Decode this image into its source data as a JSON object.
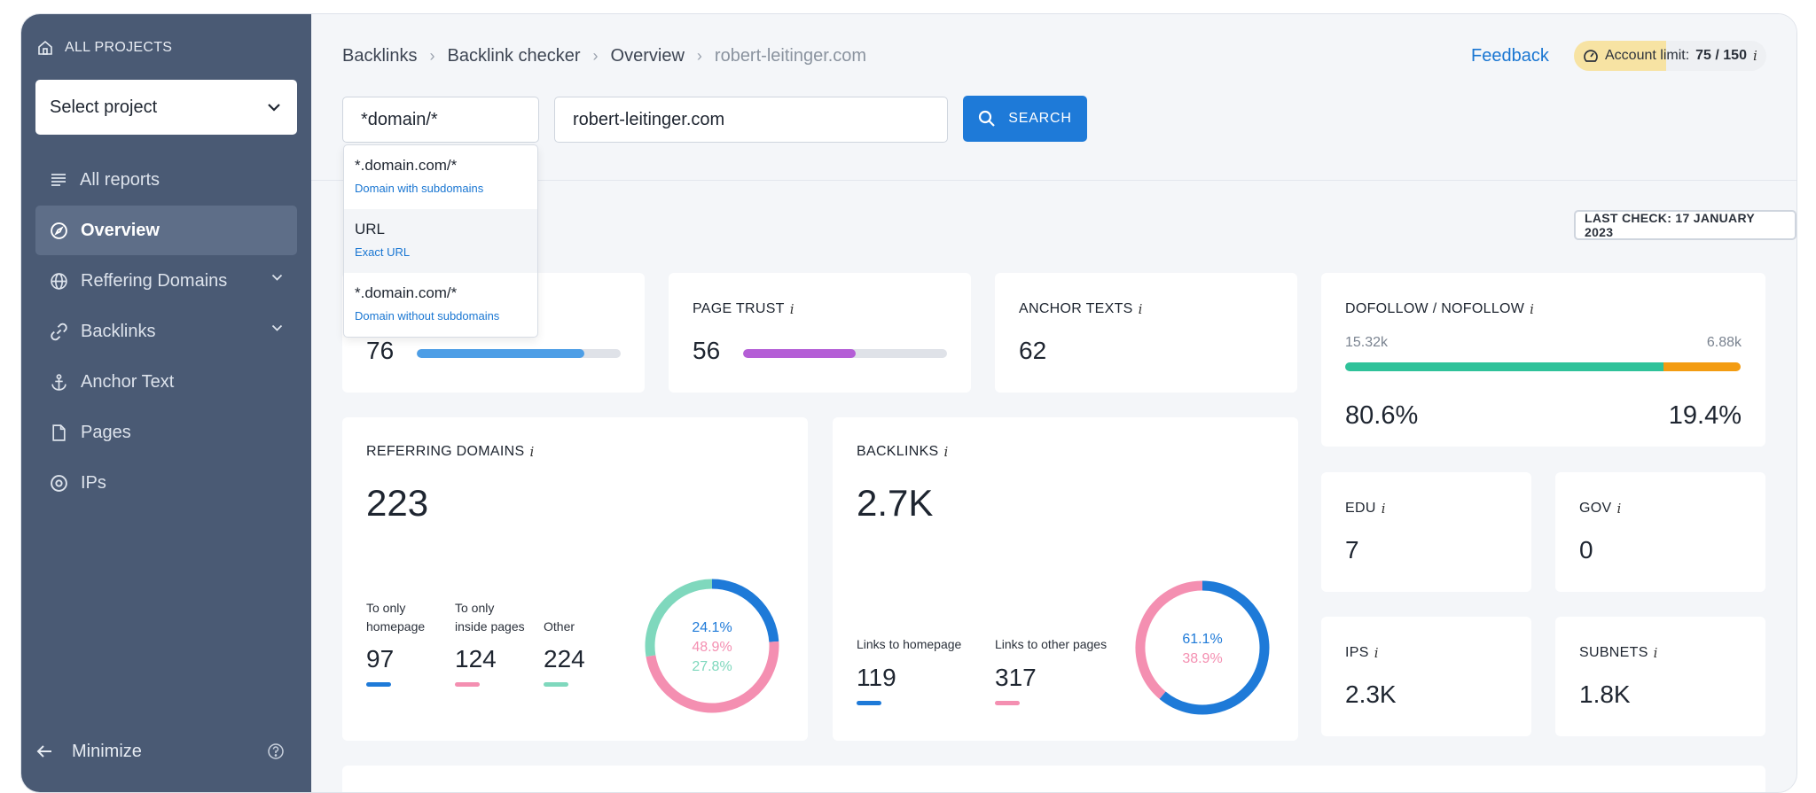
{
  "sidebar": {
    "all_projects": "ALL PROJECTS",
    "select_project": "Select project",
    "items": [
      {
        "label": "All reports",
        "icon": "list-icon"
      },
      {
        "label": "Overview",
        "icon": "compass-icon",
        "active": true
      },
      {
        "label": "Reffering Domains",
        "icon": "globe-icon",
        "expandable": true
      },
      {
        "label": "Backlinks",
        "icon": "link-icon",
        "expandable": true
      },
      {
        "label": "Anchor Text",
        "icon": "anchor-icon"
      },
      {
        "label": "Pages",
        "icon": "page-icon"
      },
      {
        "label": "IPs",
        "icon": "target-icon"
      }
    ],
    "minimize": "Minimize"
  },
  "breadcrumb": [
    "Backlinks",
    "Backlink checker",
    "Overview",
    "robert-leitinger.com"
  ],
  "header": {
    "feedback": "Feedback",
    "account_limit_label": "Account limit:",
    "account_limit_value": "75 / 150",
    "account_limit_fraction": 0.5,
    "info": "i"
  },
  "search": {
    "type_value": "*domain/*",
    "domain_value": "robert-leitinger.com",
    "button": "SEARCH"
  },
  "dropdown": [
    {
      "title": "*.domain.com/*",
      "subtitle": "Domain with subdomains"
    },
    {
      "title": "URL",
      "subtitle": "Exact URL"
    },
    {
      "title": "*.domain.com/*",
      "subtitle": "Domain without subdomains"
    }
  ],
  "last_check": "LAST CHECK: 17 JANUARY 2023",
  "cards": {
    "domain_trust": {
      "value": "76",
      "fraction": 0.82,
      "color": "#4d9ee6"
    },
    "page_trust": {
      "title": "PAGE TRUST",
      "value": "56",
      "fraction": 0.55,
      "color": "#b45ed6"
    },
    "anchor_texts": {
      "title": "ANCHOR TEXTS",
      "value": "62"
    },
    "dofollow": {
      "title": "DOFOLLOW / NOFOLLOW",
      "left_count": "15.32k",
      "right_count": "6.88k",
      "left_pct": "80.6%",
      "right_pct": "19.4%",
      "fraction": 0.806,
      "left_color": "#2fc29a",
      "right_color": "#f39c12"
    },
    "referring_domains": {
      "title": "REFERRING DOMAINS",
      "value": "223",
      "stats": [
        {
          "label1": "To only",
          "label2": "homepage",
          "value": "97",
          "color": "#1e7ad8"
        },
        {
          "label1": "To only",
          "label2": "inside pages",
          "value": "124",
          "color": "#f48fb1"
        },
        {
          "label1": "",
          "label2": "Other",
          "value": "224",
          "color": "#7fd8bd"
        }
      ],
      "donut": [
        {
          "label": "24.1%",
          "value": 24.1,
          "color": "#1e7ad8"
        },
        {
          "label": "48.9%",
          "value": 48.9,
          "color": "#f48fb1"
        },
        {
          "label": "27.8%",
          "value": 27.8,
          "color": "#7fd8bd"
        }
      ]
    },
    "backlinks": {
      "title": "BACKLINKS",
      "value": "2.7K",
      "stats": [
        {
          "label": "Links to homepage",
          "value": "119",
          "color": "#1e7ad8"
        },
        {
          "label": "Links to other pages",
          "value": "317",
          "color": "#f48fb1"
        }
      ],
      "donut": [
        {
          "label": "61.1%",
          "value": 61.1,
          "color": "#1e7ad8"
        },
        {
          "label": "38.9%",
          "value": 38.9,
          "color": "#f48fb1"
        }
      ]
    },
    "edu": {
      "title": "EDU",
      "value": "7"
    },
    "gov": {
      "title": "GOV",
      "value": "0"
    },
    "ips": {
      "title": "IPS",
      "value": "2.3K"
    },
    "subnets": {
      "title": "SUBNETS",
      "value": "1.8K"
    }
  }
}
